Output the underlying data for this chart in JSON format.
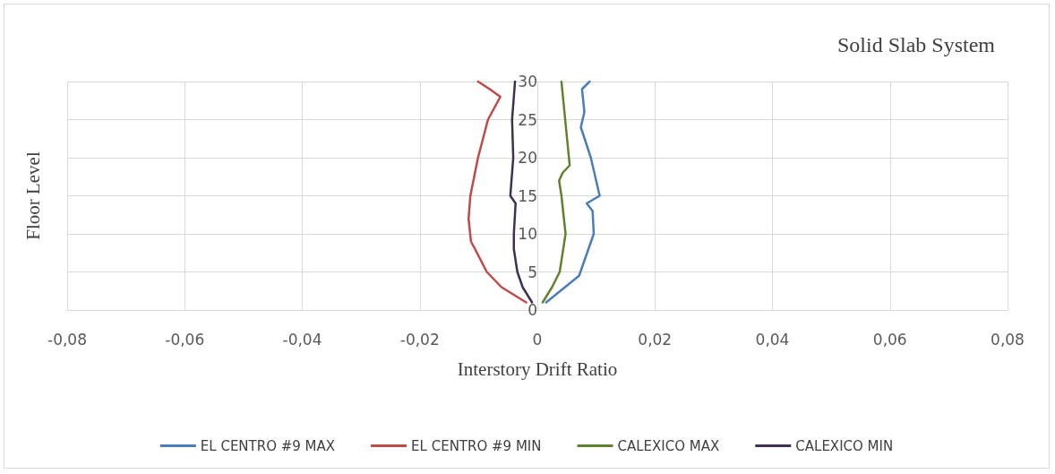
{
  "chart_data": {
    "type": "line",
    "title": "Solid Slab System",
    "xlabel": "Interstory Drift Ratio",
    "ylabel": "Floor Level",
    "xlim": [
      -0.08,
      0.08
    ],
    "xticks": [
      {
        "value": -0.08,
        "label": "-0,08"
      },
      {
        "value": -0.06,
        "label": "-0,06"
      },
      {
        "value": -0.04,
        "label": "-0,04"
      },
      {
        "value": -0.02,
        "label": "-0,02"
      },
      0,
      {
        "value": 0.02,
        "label": "0,02"
      },
      {
        "value": 0.04,
        "label": "0,04"
      },
      {
        "value": 0.06,
        "label": "0,06"
      },
      {
        "value": 0.08,
        "label": "0,08"
      }
    ],
    "ylim": [
      0,
      30
    ],
    "yticks": [
      0,
      5,
      10,
      15,
      20,
      25,
      30
    ],
    "grid": true,
    "legend": "bottom",
    "marker": "none",
    "line_style": "solid",
    "series": [
      {
        "name": "EL CENTRO #9 MAX",
        "color": "#4a7ebb",
        "x": [
          0.0015,
          0.0071,
          0.0096,
          0.0094,
          0.0084,
          0.0106,
          0.0091,
          0.0074,
          0.008,
          0.0076,
          0.0089
        ],
        "values": [
          1,
          4.5,
          10,
          13,
          14,
          15,
          20,
          24,
          26,
          29,
          30
        ]
      },
      {
        "name": "EL CENTRO #9 MIN",
        "color": "#be4b48",
        "x": [
          -0.0019,
          -0.0061,
          -0.0086,
          -0.0106,
          -0.0113,
          -0.0117,
          -0.0114,
          -0.0101,
          -0.0084,
          -0.0063,
          -0.0081,
          -0.0101
        ],
        "values": [
          1,
          3,
          5,
          8,
          9,
          12,
          15,
          20,
          25,
          28,
          29,
          30
        ]
      },
      {
        "name": "CALEXICO MAX",
        "color": "#62812f",
        "x": [
          0.0009,
          0.0025,
          0.0038,
          0.0048,
          0.0041,
          0.0037,
          0.0043,
          0.0055,
          0.0041
        ],
        "values": [
          1,
          3,
          5,
          10,
          15,
          17,
          18,
          19,
          30
        ]
      },
      {
        "name": "CALEXICO MIN",
        "color": "#3f3151",
        "x": [
          -0.0009,
          -0.0025,
          -0.0034,
          -0.004,
          -0.004,
          -0.0037,
          -0.0046,
          -0.0043,
          -0.0041,
          -0.0043,
          -0.0038
        ],
        "values": [
          1,
          3,
          5,
          8,
          10,
          14,
          15,
          18,
          20,
          25,
          30
        ]
      }
    ]
  }
}
